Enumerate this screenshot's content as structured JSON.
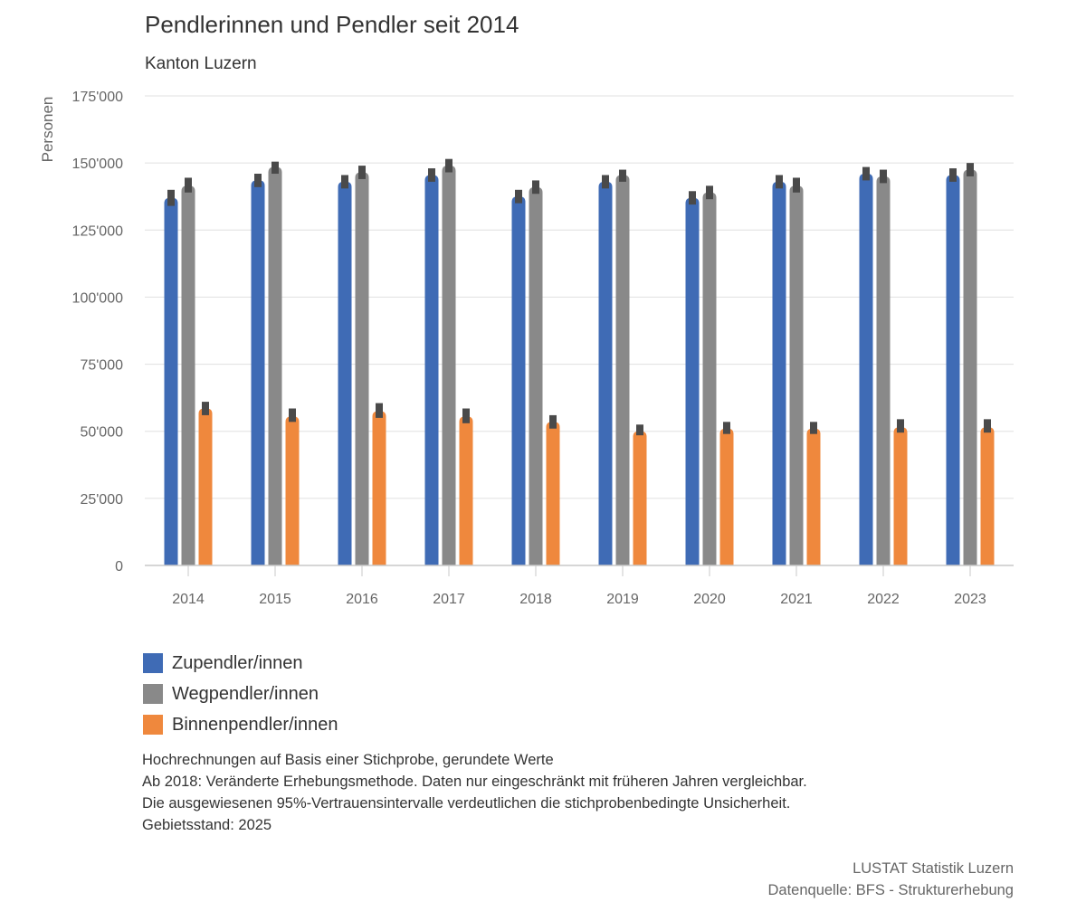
{
  "title": "Pendlerinnen und Pendler seit 2014",
  "subtitle": "Kanton Luzern",
  "chart_data": {
    "type": "bar",
    "ylabel": "Personen",
    "xlabel": "",
    "ylim": [
      0,
      175000
    ],
    "yticks": [
      0,
      25000,
      50000,
      75000,
      100000,
      125000,
      150000,
      175000
    ],
    "ytick_labels": [
      "0",
      "25'000",
      "50'000",
      "75'000",
      "100'000",
      "125'000",
      "150'000",
      "175'000"
    ],
    "grid": true,
    "legend_position": "bottom-left",
    "categories": [
      "2014",
      "2015",
      "2016",
      "2017",
      "2018",
      "2019",
      "2020",
      "2021",
      "2022",
      "2023"
    ],
    "series": [
      {
        "name": "Zupendler/innen",
        "color": "#3f6bb5",
        "values": [
          137000,
          143500,
          143000,
          145500,
          137500,
          143000,
          137000,
          143000,
          146000,
          145500
        ],
        "ci_low": [
          134000,
          141000,
          140500,
          143000,
          135000,
          140500,
          134500,
          140500,
          143500,
          143000
        ],
        "ci_high": [
          140000,
          146000,
          145500,
          148000,
          140000,
          145500,
          139500,
          145500,
          148500,
          148000
        ]
      },
      {
        "name": "Wegpendler/innen",
        "color": "#898989",
        "values": [
          141500,
          148500,
          146500,
          149000,
          141000,
          145500,
          139000,
          141500,
          145000,
          147500
        ],
        "ci_low": [
          139000,
          146000,
          144000,
          146500,
          138500,
          143000,
          136500,
          139000,
          142500,
          145000
        ],
        "ci_high": [
          144500,
          150500,
          149000,
          151500,
          143500,
          147500,
          141500,
          144500,
          147500,
          150000
        ]
      },
      {
        "name": "Binnenpendler/innen",
        "color": "#ef883d",
        "values": [
          58500,
          55500,
          57500,
          55500,
          53500,
          50000,
          51000,
          51000,
          51500,
          51500
        ],
        "ci_low": [
          56000,
          53500,
          55000,
          53000,
          51000,
          48500,
          49000,
          49000,
          49500,
          49500
        ],
        "ci_high": [
          61000,
          58500,
          60500,
          58500,
          56000,
          52500,
          53500,
          53500,
          54500,
          54500
        ]
      }
    ]
  },
  "notes": [
    "Hochrechnungen auf Basis einer Stichprobe, gerundete Werte",
    "Ab 2018: Veränderte Erhebungsmethode. Daten nur eingeschränkt mit früheren Jahren vergleichbar.",
    "Die ausgewiesenen 95%-Vertrauensintervalle verdeutlichen die stichprobenbedingte Unsicherheit.",
    "Gebietsstand: 2025"
  ],
  "credits": {
    "publisher": "LUSTAT Statistik Luzern",
    "source": "Datenquelle: BFS - Strukturerhebung"
  }
}
